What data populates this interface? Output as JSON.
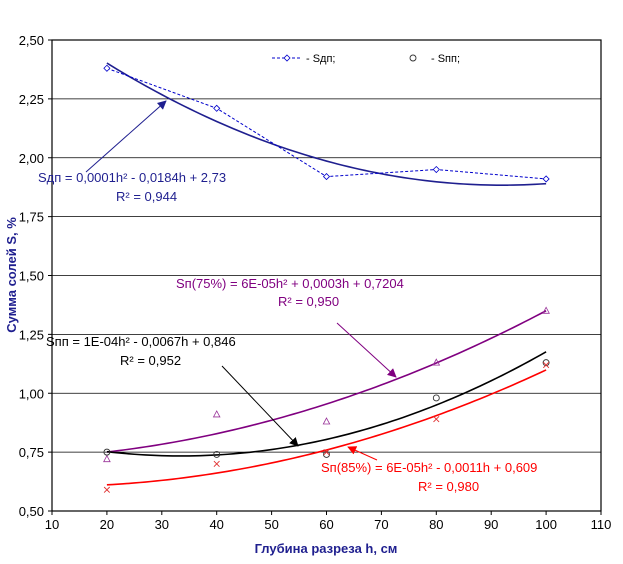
{
  "chart_data": {
    "type": "scatter",
    "xlabel": "Глубина разреза h, см",
    "ylabel": "Сумма солей S, %",
    "xlim": [
      10,
      110
    ],
    "ylim": [
      0.5,
      2.5
    ],
    "xticks": [
      10,
      20,
      30,
      40,
      50,
      60,
      70,
      80,
      90,
      100,
      110
    ],
    "xtick_labels": [
      "10",
      "20",
      "30",
      "40",
      "50",
      "60",
      "70",
      "80",
      "90",
      "100",
      "110"
    ],
    "yticks": [
      0.5,
      0.75,
      1.0,
      1.25,
      1.5,
      1.75,
      2.0,
      2.25,
      2.5
    ],
    "ytick_labels": [
      "0,50",
      "0,75",
      "1,00",
      "1,25",
      "1,50",
      "1,75",
      "2,00",
      "2,25",
      "2,50"
    ],
    "grid": "horizontal",
    "legend_position": "top-right",
    "legend": [
      {
        "series": "sdp",
        "label": "- Sдп;"
      },
      {
        "series": "spp",
        "label": "-   Sпп;"
      }
    ],
    "series": [
      {
        "key": "sdp",
        "name": "Sдп",
        "color": "#0000CC",
        "marker": "diamond",
        "connect": "dashed",
        "x": [
          20,
          40,
          60,
          80,
          100
        ],
        "y": [
          2.38,
          2.21,
          1.92,
          1.95,
          1.91
        ],
        "trend": {
          "a": 0.0001,
          "b": -0.0184,
          "c": 2.73,
          "color": "#1F1F8F",
          "equation": "Sдп = 0,0001h² - 0,0184h + 2,73",
          "r2": "R² = 0,944"
        }
      },
      {
        "key": "s75",
        "name": "Sп(75%)",
        "color": "#993399",
        "marker": "triangle",
        "x": [
          20,
          40,
          60,
          80,
          100
        ],
        "y": [
          0.72,
          0.91,
          0.88,
          1.13,
          1.35
        ],
        "trend": {
          "a": 6e-05,
          "b": 0.0003,
          "c": 0.7204,
          "color": "#800080",
          "equation": "Sп(75%) = 6E-05h² + 0,0003h + 0,7204",
          "r2": "R² = 0,950"
        }
      },
      {
        "key": "spp",
        "name": "Sпп",
        "color": "#333333",
        "marker": "circle",
        "x": [
          20,
          40,
          60,
          80,
          100
        ],
        "y": [
          0.75,
          0.74,
          0.74,
          0.98,
          1.13
        ],
        "trend": {
          "a": 0.0001,
          "b": -0.0067,
          "c": 0.846,
          "color": "#000000",
          "equation": "Sпп  = 1E-04h² - 0,0067h + 0,846",
          "r2": "R² = 0,952"
        }
      },
      {
        "key": "s85",
        "name": "Sп(85%)",
        "color": "#E03030",
        "marker": "cross",
        "x": [
          20,
          40,
          60,
          80,
          100
        ],
        "y": [
          0.59,
          0.7,
          0.75,
          0.89,
          1.12
        ],
        "trend": {
          "a": 6e-05,
          "b": -0.0011,
          "c": 0.609,
          "color": "#FF0000",
          "equation": "Sп(85%) = 6E-05h² - 0,0011h + 0,609",
          "r2": "R² = 0,980"
        }
      }
    ]
  }
}
